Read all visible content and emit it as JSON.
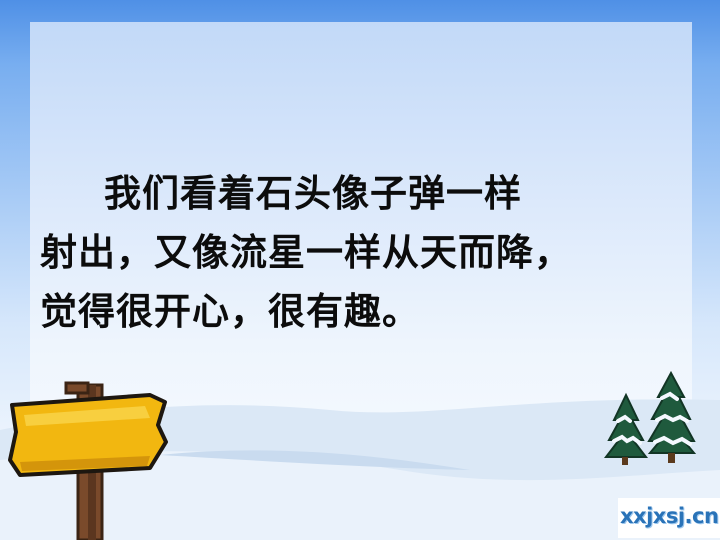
{
  "slide": {
    "text_lines": [
      "我们看着石头像子弹一样",
      "射出，又像流星一样从天而降，",
      "觉得很开心，很有趣。"
    ],
    "watermark": "xxjxsj.cn"
  },
  "decorations": {
    "signpost": "wooden-signpost",
    "trees": "snowy-pine-trees"
  },
  "colors": {
    "sky_top": "#4f90e6",
    "panel": "#dce9fb",
    "snow": "#d8e6f4",
    "text": "#0c0c0c",
    "sign_board": "#f2b710",
    "watermark_text": "#2a73b8"
  }
}
